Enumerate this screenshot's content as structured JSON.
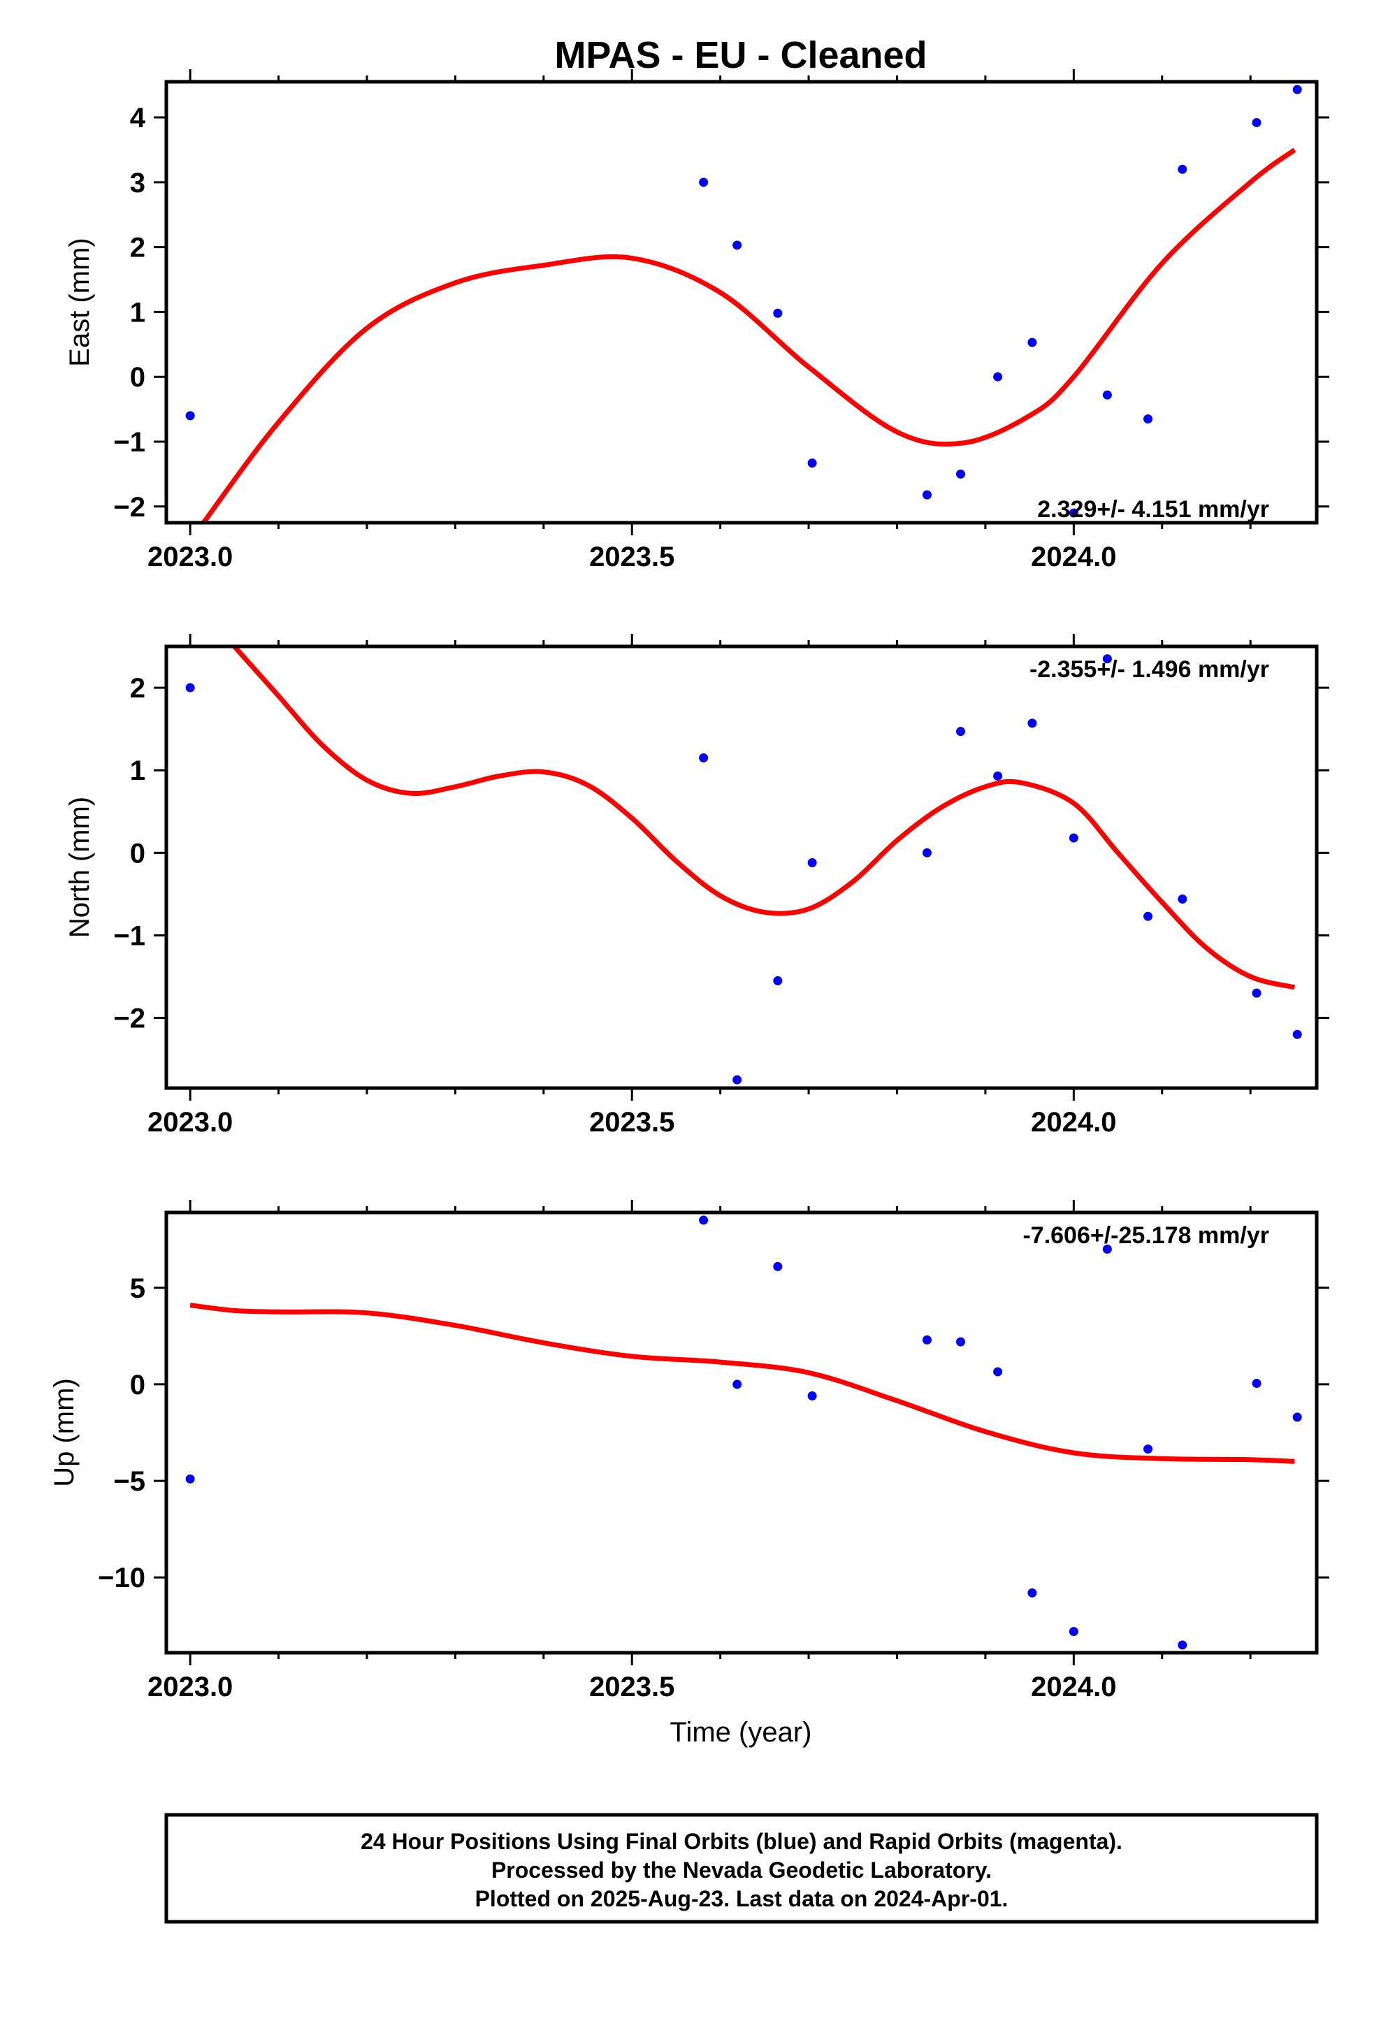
{
  "title": "MPAS  - EU - Cleaned",
  "xlabel": "Time (year)",
  "caption": [
    "24 Hour Positions Using Final Orbits (blue) and Rapid Orbits (magenta).",
    "Processed by the Nevada Geodetic Laboratory.",
    "Plotted on 2025-Aug-23. Last data on 2024-Apr-01."
  ],
  "colors": {
    "points": "#0000ff",
    "fit": "#ff0000",
    "frame": "#000000"
  },
  "chart_data": [
    {
      "type": "scatter",
      "ylabel": "East (mm)",
      "rate": "2.329+/- 4.151 mm/yr",
      "xlim": [
        2022.973,
        2024.275
      ],
      "ylim": [
        -2.25,
        4.55
      ],
      "xticks": [
        2023.0,
        2023.5,
        2024.0
      ],
      "xtick_labels": [
        "2023.0",
        "2023.5",
        "2024.0"
      ],
      "yticks": [
        -2,
        -1,
        0,
        1,
        2,
        3,
        4
      ],
      "ytick_labels": [
        "−2",
        "−1",
        "0",
        "1",
        "2",
        "3",
        "4"
      ],
      "points": {
        "x": [
          2023.0,
          2023.581,
          2023.619,
          2023.665,
          2023.704,
          2023.834,
          2023.872,
          2023.914,
          2023.953,
          2024.0,
          2024.038,
          2024.084,
          2024.123,
          2024.207,
          2024.253
        ],
        "y": [
          -0.6,
          3.0,
          2.03,
          0.98,
          -1.33,
          -1.82,
          -1.5,
          0.0,
          0.53,
          -2.1,
          -0.28,
          -0.65,
          3.2,
          3.92,
          4.43
        ]
      },
      "fit": {
        "x": [
          2023.015,
          2023.1,
          2023.2,
          2023.3,
          2023.4,
          2023.5,
          2023.6,
          2023.7,
          2023.8,
          2023.875,
          2023.95,
          2024.0,
          2024.1,
          2024.2,
          2024.25
        ],
        "y": [
          -2.25,
          -0.7,
          0.75,
          1.45,
          1.72,
          1.83,
          1.3,
          0.15,
          -0.85,
          -1.02,
          -0.6,
          0.0,
          1.75,
          3.0,
          3.5
        ]
      }
    },
    {
      "type": "scatter",
      "ylabel": "North (mm)",
      "rate": "-2.355+/- 1.496 mm/yr",
      "xlim": [
        2022.973,
        2024.275
      ],
      "ylim": [
        -2.85,
        2.5
      ],
      "xticks": [
        2023.0,
        2023.5,
        2024.0
      ],
      "xtick_labels": [
        "2023.0",
        "2023.5",
        "2024.0"
      ],
      "yticks": [
        -2,
        -1,
        0,
        1,
        2
      ],
      "ytick_labels": [
        "−2",
        "−1",
        "0",
        "1",
        "2"
      ],
      "points": {
        "x": [
          2023.0,
          2023.581,
          2023.619,
          2023.665,
          2023.704,
          2023.834,
          2023.872,
          2023.914,
          2023.953,
          2024.0,
          2024.038,
          2024.084,
          2024.123,
          2024.207,
          2024.253
        ],
        "y": [
          2.0,
          1.15,
          -2.75,
          -1.55,
          -0.12,
          0.0,
          1.47,
          0.93,
          1.57,
          0.18,
          2.35,
          -0.77,
          -0.56,
          -1.7,
          -2.2
        ]
      },
      "fit": {
        "x": [
          2023.05,
          2023.1,
          2023.15,
          2023.2,
          2023.25,
          2023.3,
          2023.35,
          2023.4,
          2023.45,
          2023.5,
          2023.55,
          2023.6,
          2023.65,
          2023.7,
          2023.75,
          2023.8,
          2023.85,
          2023.9,
          2023.94,
          2024.0,
          2024.05,
          2024.1,
          2024.15,
          2024.2,
          2024.25
        ],
        "y": [
          2.5,
          1.9,
          1.3,
          0.88,
          0.72,
          0.8,
          0.93,
          0.98,
          0.82,
          0.42,
          -0.1,
          -0.52,
          -0.72,
          -0.68,
          -0.35,
          0.15,
          0.55,
          0.8,
          0.85,
          0.6,
          0.0,
          -0.6,
          -1.15,
          -1.5,
          -1.63
        ]
      }
    },
    {
      "type": "scatter",
      "ylabel": "Up (mm)",
      "rate": "-7.606+/-25.178 mm/yr",
      "xlim": [
        2022.973,
        2024.275
      ],
      "ylim": [
        -13.9,
        8.9
      ],
      "xticks": [
        2023.0,
        2023.5,
        2024.0
      ],
      "xtick_labels": [
        "2023.0",
        "2023.5",
        "2024.0"
      ],
      "yticks": [
        -10,
        -5,
        0,
        5
      ],
      "ytick_labels": [
        "−10",
        "−5",
        "0",
        "5"
      ],
      "points": {
        "x": [
          2023.0,
          2023.581,
          2023.619,
          2023.665,
          2023.704,
          2023.834,
          2023.872,
          2023.914,
          2023.953,
          2024.0,
          2024.038,
          2024.084,
          2024.123,
          2024.207,
          2024.253
        ],
        "y": [
          -4.9,
          8.5,
          0.0,
          6.1,
          -0.6,
          2.3,
          2.2,
          0.65,
          -10.8,
          -12.8,
          7.0,
          -3.35,
          -13.5,
          0.05,
          -1.7
        ]
      },
      "fit": {
        "x": [
          2023.0,
          2023.05,
          2023.1,
          2023.2,
          2023.3,
          2023.4,
          2023.5,
          2023.6,
          2023.7,
          2023.8,
          2023.9,
          2024.0,
          2024.1,
          2024.2,
          2024.25
        ],
        "y": [
          4.1,
          3.82,
          3.75,
          3.7,
          3.05,
          2.15,
          1.45,
          1.15,
          0.6,
          -0.85,
          -2.45,
          -3.55,
          -3.85,
          -3.9,
          -4.0
        ]
      }
    }
  ]
}
